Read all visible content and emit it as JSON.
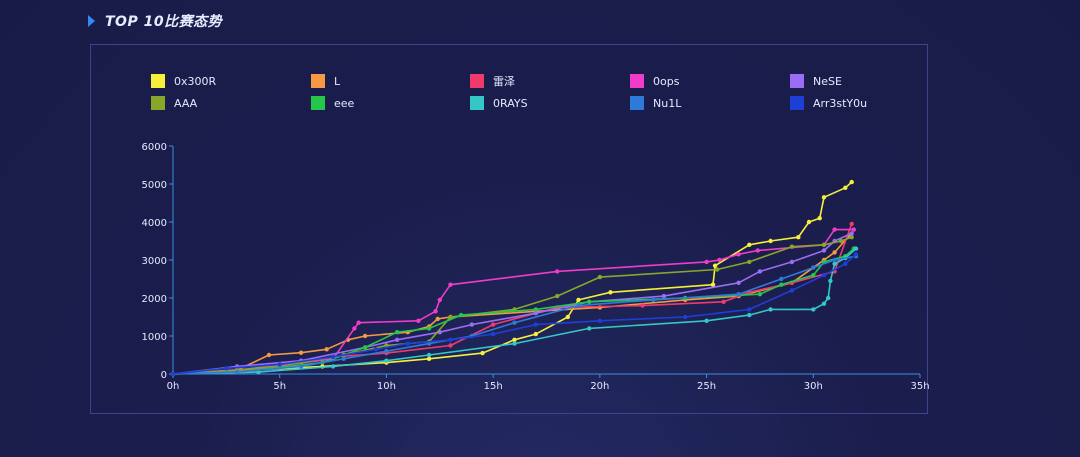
{
  "header": {
    "title": "TOP 10比赛态势"
  },
  "chart_data": {
    "type": "line",
    "title": "",
    "xlabel": "",
    "ylabel": "",
    "x_unit": "h",
    "xlim": [
      0,
      35
    ],
    "ylim": [
      0,
      6000
    ],
    "xticks": [
      "0h",
      "5h",
      "10h",
      "15h",
      "20h",
      "25h",
      "30h",
      "35h"
    ],
    "yticks": [
      "0",
      "1000",
      "2000",
      "3000",
      "4000",
      "5000",
      "6000"
    ],
    "grid": false,
    "legend_position": "top",
    "series": [
      {
        "name": "0x300R",
        "color": "#f7f03a",
        "points": [
          [
            0,
            0
          ],
          [
            3,
            80
          ],
          [
            7,
            200
          ],
          [
            10,
            300
          ],
          [
            12,
            400
          ],
          [
            14.5,
            550
          ],
          [
            16,
            900
          ],
          [
            17,
            1050
          ],
          [
            18.5,
            1500
          ],
          [
            19,
            1950
          ],
          [
            20.5,
            2150
          ],
          [
            25.3,
            2350
          ],
          [
            25.4,
            2850
          ],
          [
            27,
            3400
          ],
          [
            28,
            3500
          ],
          [
            29.3,
            3600
          ],
          [
            29.8,
            4000
          ],
          [
            30.3,
            4100
          ],
          [
            30.5,
            4650
          ],
          [
            31.5,
            4900
          ],
          [
            31.8,
            5050
          ]
        ]
      },
      {
        "name": "L",
        "color": "#f59a42",
        "points": [
          [
            0,
            0
          ],
          [
            3,
            100
          ],
          [
            4.5,
            500
          ],
          [
            6,
            560
          ],
          [
            7.2,
            650
          ],
          [
            8.2,
            900
          ],
          [
            9,
            1000
          ],
          [
            11,
            1100
          ],
          [
            12,
            1250
          ],
          [
            12.4,
            1450
          ],
          [
            13,
            1500
          ],
          [
            17,
            1650
          ],
          [
            20,
            1750
          ],
          [
            24,
            1950
          ],
          [
            26.5,
            2050
          ],
          [
            29,
            2400
          ],
          [
            30.5,
            3000
          ],
          [
            31,
            3200
          ],
          [
            31.7,
            3650
          ]
        ]
      },
      {
        "name": "雷泽",
        "color": "#ef3b6b",
        "points": [
          [
            0,
            0
          ],
          [
            4,
            100
          ],
          [
            7.5,
            450
          ],
          [
            10,
            550
          ],
          [
            13,
            750
          ],
          [
            15,
            1300
          ],
          [
            18,
            1750
          ],
          [
            22,
            1800
          ],
          [
            25.8,
            1900
          ],
          [
            27,
            2150
          ],
          [
            29,
            2400
          ],
          [
            31,
            2700
          ],
          [
            31.8,
            3950
          ]
        ]
      },
      {
        "name": "0ops",
        "color": "#f03cc9",
        "points": [
          [
            0,
            0
          ],
          [
            4,
            150
          ],
          [
            7.5,
            400
          ],
          [
            8.5,
            1200
          ],
          [
            8.7,
            1350
          ],
          [
            11.5,
            1400
          ],
          [
            12.3,
            1650
          ],
          [
            12.5,
            1950
          ],
          [
            13,
            2350
          ],
          [
            18,
            2700
          ],
          [
            25,
            2950
          ],
          [
            25.6,
            3000
          ],
          [
            26.5,
            3150
          ],
          [
            27.4,
            3250
          ],
          [
            30.5,
            3400
          ],
          [
            31,
            3800
          ],
          [
            31.9,
            3800
          ]
        ]
      },
      {
        "name": "NeSE",
        "color": "#9b6cf5",
        "points": [
          [
            0,
            0
          ],
          [
            3,
            200
          ],
          [
            6,
            350
          ],
          [
            9,
            700
          ],
          [
            10.5,
            900
          ],
          [
            12.5,
            1100
          ],
          [
            14,
            1300
          ],
          [
            17,
            1600
          ],
          [
            19.5,
            1900
          ],
          [
            23,
            2050
          ],
          [
            26.5,
            2400
          ],
          [
            27.5,
            2700
          ],
          [
            29,
            2950
          ],
          [
            30.5,
            3250
          ],
          [
            31,
            3500
          ],
          [
            31.8,
            3700
          ]
        ]
      },
      {
        "name": "AAA",
        "color": "#8aa629",
        "points": [
          [
            0,
            0
          ],
          [
            3,
            100
          ],
          [
            6,
            300
          ],
          [
            8,
            500
          ],
          [
            10,
            750
          ],
          [
            12,
            850
          ],
          [
            13,
            1500
          ],
          [
            16,
            1700
          ],
          [
            18,
            2050
          ],
          [
            20,
            2550
          ],
          [
            25.5,
            2750
          ],
          [
            27,
            2950
          ],
          [
            29,
            3350
          ],
          [
            30.5,
            3400
          ],
          [
            31.3,
            3500
          ],
          [
            31.8,
            3600
          ]
        ]
      },
      {
        "name": "eee",
        "color": "#23c84a",
        "points": [
          [
            0,
            0
          ],
          [
            3,
            50
          ],
          [
            7,
            300
          ],
          [
            9,
            700
          ],
          [
            10.5,
            1100
          ],
          [
            12,
            1200
          ],
          [
            13.5,
            1550
          ],
          [
            17,
            1700
          ],
          [
            19.5,
            1900
          ],
          [
            24,
            2000
          ],
          [
            27.5,
            2100
          ],
          [
            28.5,
            2350
          ],
          [
            30,
            2600
          ],
          [
            30.5,
            2950
          ],
          [
            31.5,
            3100
          ],
          [
            31.9,
            3300
          ]
        ]
      },
      {
        "name": "0RAYS",
        "color": "#35c7c6",
        "points": [
          [
            0,
            0
          ],
          [
            4,
            50
          ],
          [
            7.5,
            200
          ],
          [
            10,
            350
          ],
          [
            12,
            500
          ],
          [
            16,
            800
          ],
          [
            19.5,
            1200
          ],
          [
            25,
            1400
          ],
          [
            27,
            1550
          ],
          [
            28,
            1700
          ],
          [
            30,
            1700
          ],
          [
            30.5,
            1850
          ],
          [
            30.7,
            2000
          ],
          [
            30.8,
            2450
          ],
          [
            31,
            2900
          ],
          [
            31.5,
            3050
          ],
          [
            32,
            3300
          ]
        ]
      },
      {
        "name": "Nu1L",
        "color": "#2f79d9",
        "points": [
          [
            0,
            0
          ],
          [
            3,
            50
          ],
          [
            6,
            200
          ],
          [
            8,
            400
          ],
          [
            10,
            600
          ],
          [
            12,
            800
          ],
          [
            14,
            1000
          ],
          [
            16,
            1350
          ],
          [
            19,
            1800
          ],
          [
            22.5,
            1950
          ],
          [
            26.5,
            2100
          ],
          [
            28.5,
            2500
          ],
          [
            30,
            2800
          ],
          [
            31,
            3000
          ],
          [
            32,
            3100
          ]
        ]
      },
      {
        "name": "Arr3stY0u",
        "color": "#1e3fd6",
        "points": [
          [
            0,
            0
          ],
          [
            2.5,
            150
          ],
          [
            5,
            250
          ],
          [
            7.5,
            450
          ],
          [
            9.5,
            650
          ],
          [
            11,
            800
          ],
          [
            13,
            900
          ],
          [
            15,
            1050
          ],
          [
            17,
            1300
          ],
          [
            20,
            1400
          ],
          [
            24,
            1500
          ],
          [
            27,
            1700
          ],
          [
            29,
            2200
          ],
          [
            30.5,
            2600
          ],
          [
            31.5,
            2900
          ],
          [
            32,
            3150
          ]
        ]
      }
    ]
  }
}
